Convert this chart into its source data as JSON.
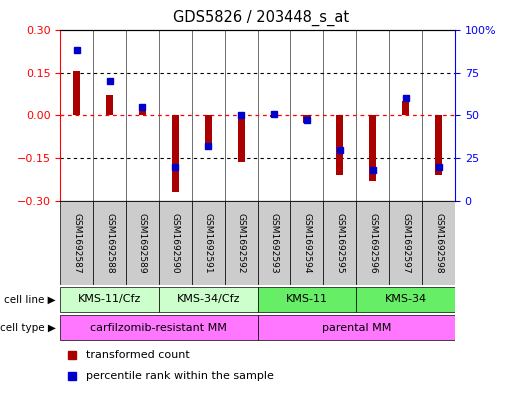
{
  "title": "GDS5826 / 203448_s_at",
  "samples": [
    "GSM1692587",
    "GSM1692588",
    "GSM1692589",
    "GSM1692590",
    "GSM1692591",
    "GSM1692592",
    "GSM1692593",
    "GSM1692594",
    "GSM1692595",
    "GSM1692596",
    "GSM1692597",
    "GSM1692598"
  ],
  "transformed_count": [
    0.155,
    0.07,
    0.018,
    -0.27,
    -0.12,
    -0.163,
    -0.005,
    -0.028,
    -0.21,
    -0.23,
    0.05,
    -0.21
  ],
  "percentile_rank": [
    88,
    70,
    55,
    20,
    32,
    50,
    51,
    47,
    30,
    18,
    60,
    20
  ],
  "cell_line_labels": [
    "KMS-11/Cfz",
    "KMS-34/Cfz",
    "KMS-11",
    "KMS-34"
  ],
  "cell_line_ranges": [
    [
      0,
      3
    ],
    [
      3,
      6
    ],
    [
      6,
      9
    ],
    [
      9,
      12
    ]
  ],
  "cell_line_colors": [
    "#ccffcc",
    "#ccffcc",
    "#66ee66",
    "#66ee66"
  ],
  "cell_type_labels": [
    "carfilzomib-resistant MM",
    "parental MM"
  ],
  "cell_type_ranges": [
    [
      0,
      6
    ],
    [
      6,
      12
    ]
  ],
  "cell_type_color": "#ff77ff",
  "ylim_left": [
    -0.3,
    0.3
  ],
  "ylim_right": [
    0,
    100
  ],
  "yticks_left": [
    -0.3,
    -0.15,
    0.0,
    0.15,
    0.3
  ],
  "yticks_right": [
    0,
    25,
    50,
    75,
    100
  ],
  "bar_color": "#aa0000",
  "dot_color": "#0000cc",
  "background_color": "#ffffff",
  "sample_box_color": "#cccccc",
  "bar_width": 0.22
}
